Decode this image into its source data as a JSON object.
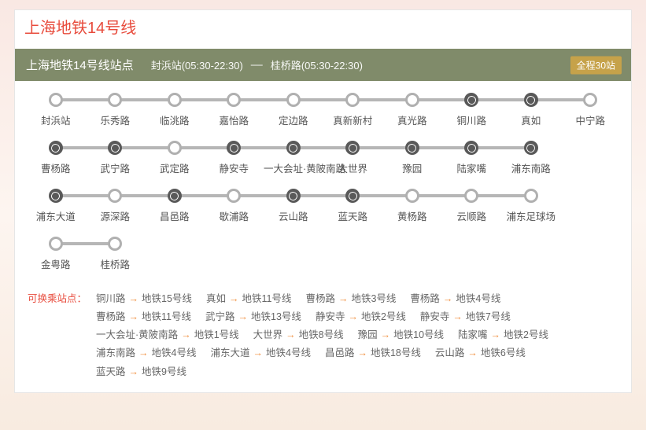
{
  "colors": {
    "accent": "#e84c3d",
    "header_bg": "#808b6a",
    "badge_bg": "#c6a24a",
    "track": "#b6b6b6",
    "node_border": "#b0b0b0",
    "transfer_node": "#595959",
    "text": "#555555",
    "arrow": "#f08c3a"
  },
  "layout": {
    "slots_per_row": 10,
    "node_radius": 6,
    "track_height": 4
  },
  "title": "上海地铁14号线",
  "header": {
    "title": "上海地铁14号线站点",
    "start_station": "封浜站",
    "start_time": "05:30-22:30",
    "end_station": "桂桥路",
    "end_time": "05:30-22:30",
    "badge": "全程30站"
  },
  "rows": [
    {
      "count": 10,
      "stations": [
        {
          "name": "封浜站",
          "transfer": false
        },
        {
          "name": "乐秀路",
          "transfer": false
        },
        {
          "name": "临洮路",
          "transfer": false
        },
        {
          "name": "嘉怡路",
          "transfer": false
        },
        {
          "name": "定边路",
          "transfer": false
        },
        {
          "name": "真新新村",
          "transfer": false
        },
        {
          "name": "真光路",
          "transfer": false
        },
        {
          "name": "铜川路",
          "transfer": true
        },
        {
          "name": "真如",
          "transfer": true
        },
        {
          "name": "中宁路",
          "transfer": false
        }
      ]
    },
    {
      "count": 9,
      "stations": [
        {
          "name": "曹杨路",
          "transfer": true
        },
        {
          "name": "武宁路",
          "transfer": true
        },
        {
          "name": "武定路",
          "transfer": false
        },
        {
          "name": "静安寺",
          "transfer": true
        },
        {
          "name": "一大会址·黄陂南路",
          "transfer": true
        },
        {
          "name": "大世界",
          "transfer": true
        },
        {
          "name": "豫园",
          "transfer": true
        },
        {
          "name": "陆家嘴",
          "transfer": true
        },
        {
          "name": "浦东南路",
          "transfer": true
        }
      ]
    },
    {
      "count": 9,
      "stations": [
        {
          "name": "浦东大道",
          "transfer": true
        },
        {
          "name": "源深路",
          "transfer": false
        },
        {
          "name": "昌邑路",
          "transfer": true
        },
        {
          "name": "歇浦路",
          "transfer": false
        },
        {
          "name": "云山路",
          "transfer": true
        },
        {
          "name": "蓝天路",
          "transfer": true
        },
        {
          "name": "黄杨路",
          "transfer": false
        },
        {
          "name": "云顺路",
          "transfer": false
        },
        {
          "name": "浦东足球场",
          "transfer": false
        }
      ]
    },
    {
      "count": 2,
      "stations": [
        {
          "name": "金粤路",
          "transfer": false
        },
        {
          "name": "桂桥路",
          "transfer": false
        }
      ]
    }
  ],
  "transfer": {
    "title": "可换乘站点：",
    "items": [
      {
        "from": "铜川路",
        "to": "地铁15号线"
      },
      {
        "from": "真如",
        "to": "地铁11号线"
      },
      {
        "from": "曹杨路",
        "to": "地铁3号线"
      },
      {
        "from": "曹杨路",
        "to": "地铁4号线"
      },
      {
        "from": "曹杨路",
        "to": "地铁11号线"
      },
      {
        "from": "武宁路",
        "to": "地铁13号线"
      },
      {
        "from": "静安寺",
        "to": "地铁2号线"
      },
      {
        "from": "静安寺",
        "to": "地铁7号线"
      },
      {
        "from": "一大会址·黄陂南路",
        "to": "地铁1号线"
      },
      {
        "from": "大世界",
        "to": "地铁8号线"
      },
      {
        "from": "豫园",
        "to": "地铁10号线"
      },
      {
        "from": "陆家嘴",
        "to": "地铁2号线"
      },
      {
        "from": "浦东南路",
        "to": "地铁4号线"
      },
      {
        "from": "浦东大道",
        "to": "地铁4号线"
      },
      {
        "from": "昌邑路",
        "to": "地铁18号线"
      },
      {
        "from": "云山路",
        "to": "地铁6号线"
      },
      {
        "from": "蓝天路",
        "to": "地铁9号线"
      }
    ]
  }
}
